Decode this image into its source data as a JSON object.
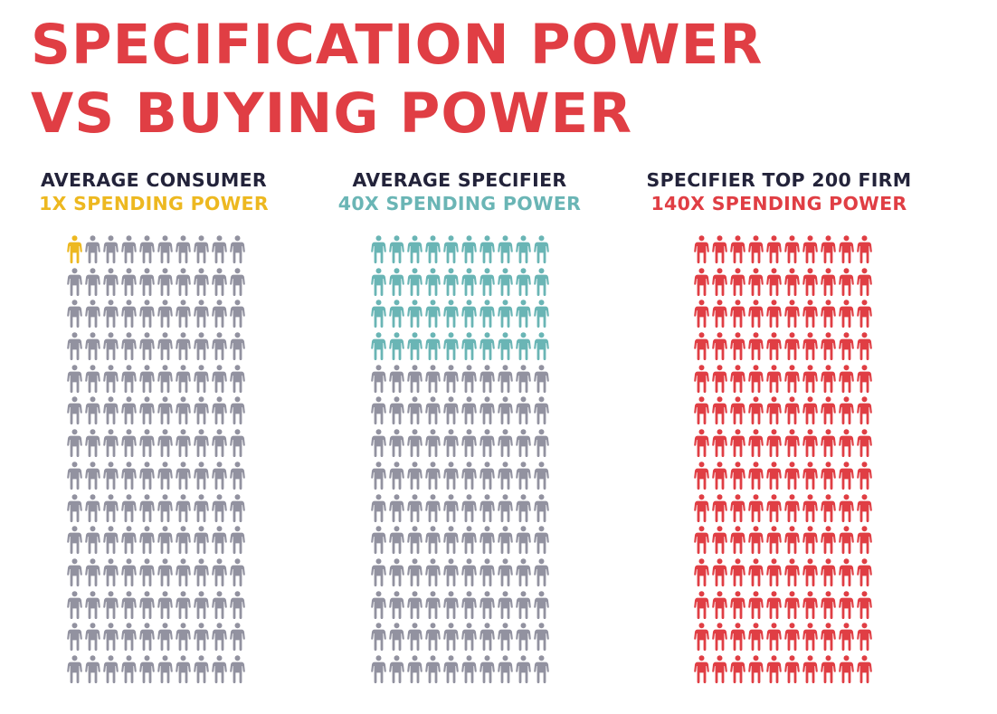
{
  "title_line1": "SPECIFICATION POWER",
  "title_line2": "VS BUYING POWER",
  "colors": {
    "title": "#e03e44",
    "heading": "#23233a",
    "consumer_accent": "#edb820",
    "specifier_accent": "#6ab5b5",
    "firm_accent": "#e03e44",
    "neutral": "#9292a0"
  },
  "panels": [
    {
      "heading": "AVERAGE CONSUMER",
      "subheading": "1X SPENDING POWER",
      "highlighted": 1,
      "total": 140,
      "accent": "#edb820"
    },
    {
      "heading": "AVERAGE SPECIFIER",
      "subheading": "40X SPENDING POWER",
      "highlighted": 40,
      "total": 140,
      "accent": "#6ab5b5"
    },
    {
      "heading": "SPECIFIER TOP 200 FIRM",
      "subheading": "140X SPENDING POWER",
      "highlighted": 140,
      "total": 140,
      "accent": "#e03e44"
    }
  ],
  "chart_data": {
    "type": "pictogram",
    "title": "SPECIFICATION POWER VS BUYING POWER",
    "grid": {
      "rows": 14,
      "columns": 10,
      "icons_per_grid": 140,
      "icon": "person-icon"
    },
    "categories": [
      "AVERAGE CONSUMER",
      "AVERAGE SPECIFIER",
      "SPECIFIER TOP 200 FIRM"
    ],
    "values": [
      1,
      40,
      140
    ],
    "value_labels": [
      "1X SPENDING POWER",
      "40X SPENDING POWER",
      "140X SPENDING POWER"
    ],
    "series_colors": [
      "#edb820",
      "#6ab5b5",
      "#e03e44"
    ],
    "unfilled_color": "#9292a0",
    "legend": "none"
  }
}
